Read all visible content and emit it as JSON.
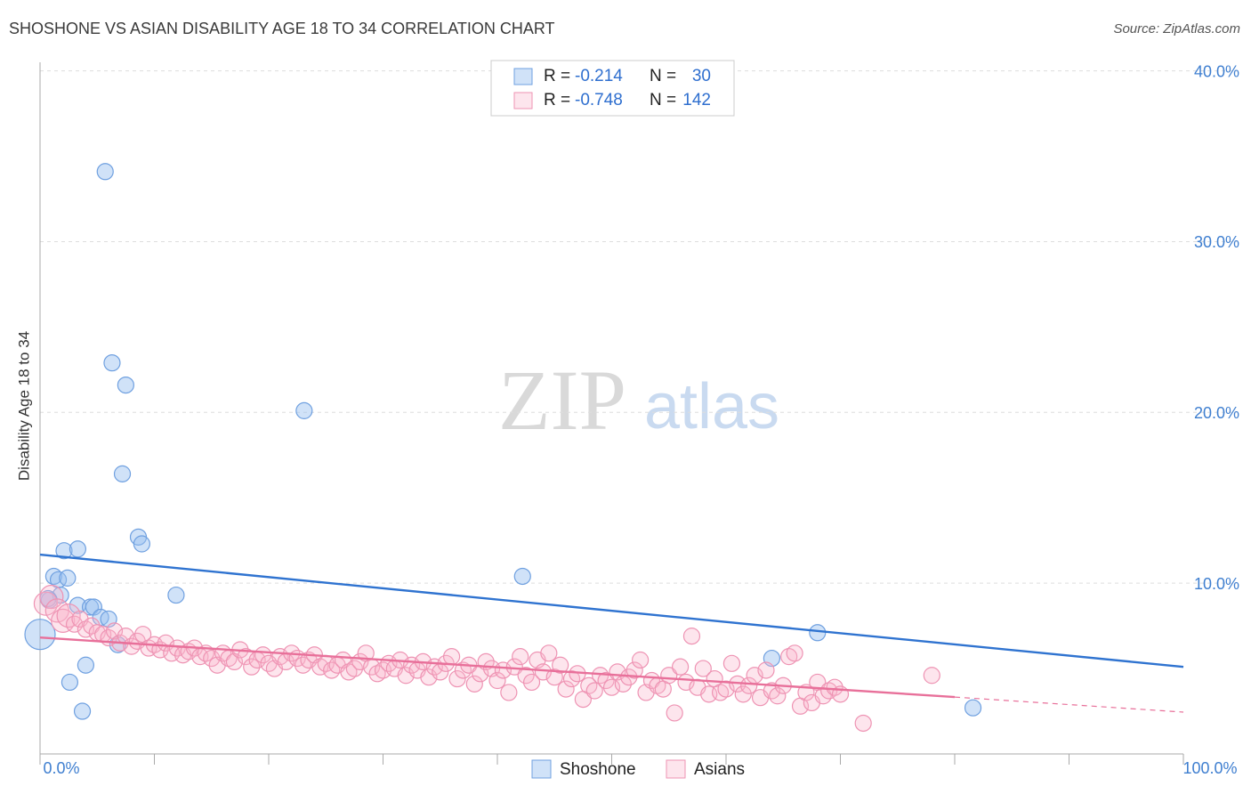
{
  "chart_data": {
    "type": "scatter",
    "title": "SHOSHONE VS ASIAN DISABILITY AGE 18 TO 34 CORRELATION CHART",
    "source": "Source: ZipAtlas.com",
    "ylabel": "Disability Age 18 to 34",
    "watermark": [
      "ZIP",
      "atlas"
    ],
    "stat_labels": {
      "r": "R =",
      "n": "N ="
    },
    "xlim": [
      0,
      100
    ],
    "ylim": [
      0,
      40.5
    ],
    "xticks": [
      {
        "value": 0,
        "label": "0.0%"
      },
      {
        "value": 100,
        "label": "100.0%"
      }
    ],
    "xminor": [
      10,
      20,
      30,
      40,
      50,
      60,
      70,
      80,
      90
    ],
    "yticks": [
      {
        "value": 10,
        "label": "10.0%"
      },
      {
        "value": 20,
        "label": "20.0%"
      },
      {
        "value": 30,
        "label": "30.0%"
      },
      {
        "value": 40,
        "label": "40.0%"
      }
    ],
    "grid": true,
    "series": [
      {
        "name": "Shoshone",
        "color": "#6fa0e0",
        "r": -0.214,
        "n": 30,
        "x": [
          5.7,
          6.3,
          7.5,
          23.1,
          7.2,
          8.6,
          8.9,
          2.1,
          3.3,
          1.2,
          1.6,
          2.4,
          42.2,
          11.9,
          1.8,
          0.8,
          3.3,
          4.4,
          4.7,
          5.3,
          6.0,
          0,
          6.8,
          68.0,
          4.0,
          2.6,
          3.7,
          64.0,
          81.6,
          0.7
        ],
        "values": [
          34.1,
          22.9,
          21.6,
          20.1,
          16.4,
          12.7,
          12.3,
          11.9,
          12.0,
          10.4,
          10.2,
          10.3,
          10.4,
          9.3,
          9.3,
          9.0,
          8.7,
          8.6,
          8.6,
          8.0,
          7.9,
          7.0,
          6.4,
          7.1,
          5.2,
          4.2,
          2.5,
          5.6,
          2.7,
          9.1
        ],
        "trend": {
          "x": [
            0,
            100
          ],
          "y": [
            11.67,
            5.1
          ]
        }
      },
      {
        "name": "Asians",
        "color": "#ee93b3",
        "r": -0.748,
        "n": 142,
        "x": [
          0.5,
          1,
          1.5,
          2,
          2.5,
          3,
          3.5,
          4,
          4.5,
          5,
          5.5,
          6,
          6.5,
          7,
          7.5,
          8,
          8.5,
          9,
          9.5,
          10,
          10.5,
          11,
          11.5,
          12,
          12.5,
          13,
          13.5,
          14,
          14.5,
          15,
          15.5,
          16,
          16.5,
          17,
          17.5,
          18,
          18.5,
          19,
          19.5,
          20,
          20.5,
          21,
          21.5,
          22,
          22.5,
          23,
          23.5,
          24,
          24.5,
          25,
          25.5,
          26,
          26.5,
          27,
          27.5,
          28,
          28.5,
          29,
          29.5,
          30,
          30.5,
          31,
          31.5,
          32,
          32.5,
          33,
          33.5,
          34,
          34.5,
          35,
          35.5,
          36,
          36.5,
          37,
          37.5,
          38,
          38.5,
          39,
          39.5,
          40,
          40.5,
          41,
          41.5,
          42,
          42.5,
          43,
          43.5,
          44,
          44.5,
          45,
          45.5,
          46,
          46.5,
          47,
          47.5,
          48,
          48.5,
          49,
          49.5,
          50,
          50.5,
          51,
          51.5,
          52,
          52.5,
          53,
          53.5,
          54,
          54.5,
          55,
          55.5,
          56,
          56.5,
          57,
          57.5,
          58,
          58.5,
          59,
          59.5,
          60,
          60.5,
          61,
          61.5,
          62,
          62.5,
          63,
          63.5,
          64,
          64.5,
          65,
          65.5,
          66,
          66.5,
          67,
          67.5,
          68,
          68.5,
          69,
          69.5,
          70,
          72,
          78
        ],
        "values": [
          8.8,
          9.2,
          8.4,
          7.8,
          8.1,
          7.6,
          7.9,
          7.3,
          7.5,
          7.1,
          7.0,
          6.8,
          7.2,
          6.5,
          6.9,
          6.3,
          6.6,
          7.0,
          6.2,
          6.4,
          6.1,
          6.5,
          5.9,
          6.2,
          5.8,
          6.0,
          6.2,
          5.7,
          5.9,
          5.6,
          5.2,
          5.9,
          5.6,
          5.4,
          6.1,
          5.7,
          5.1,
          5.5,
          5.8,
          5.3,
          5.0,
          5.7,
          5.4,
          5.9,
          5.6,
          5.2,
          5.5,
          5.8,
          5.1,
          5.3,
          4.9,
          5.2,
          5.5,
          4.8,
          5.0,
          5.4,
          5.9,
          5.1,
          4.7,
          4.9,
          5.3,
          5.0,
          5.5,
          4.6,
          5.2,
          4.9,
          5.4,
          4.5,
          5.1,
          4.8,
          5.3,
          5.7,
          4.4,
          4.9,
          5.2,
          4.1,
          4.7,
          5.4,
          5.0,
          4.3,
          4.9,
          3.6,
          5.1,
          5.7,
          4.6,
          4.2,
          5.5,
          4.8,
          5.9,
          4.5,
          5.2,
          3.8,
          4.4,
          4.7,
          3.2,
          4.0,
          3.7,
          4.6,
          4.3,
          3.9,
          4.8,
          4.1,
          4.5,
          4.9,
          5.5,
          3.6,
          4.3,
          4.0,
          3.8,
          4.6,
          2.4,
          5.1,
          4.2,
          6.9,
          3.9,
          5.0,
          3.5,
          4.4,
          3.6,
          3.8,
          5.3,
          4.1,
          3.5,
          4.0,
          4.6,
          3.3,
          4.9,
          3.7,
          3.4,
          4.0,
          5.7,
          5.9,
          2.8,
          3.6,
          3.0,
          4.2,
          3.4,
          3.7,
          3.9,
          3.5,
          1.8,
          4.6
        ],
        "trend": {
          "x": [
            0,
            80
          ],
          "y": [
            6.82,
            3.33
          ]
        },
        "trend_dashed": {
          "x": [
            80,
            100
          ],
          "y": [
            3.33,
            2.45
          ]
        }
      }
    ]
  }
}
